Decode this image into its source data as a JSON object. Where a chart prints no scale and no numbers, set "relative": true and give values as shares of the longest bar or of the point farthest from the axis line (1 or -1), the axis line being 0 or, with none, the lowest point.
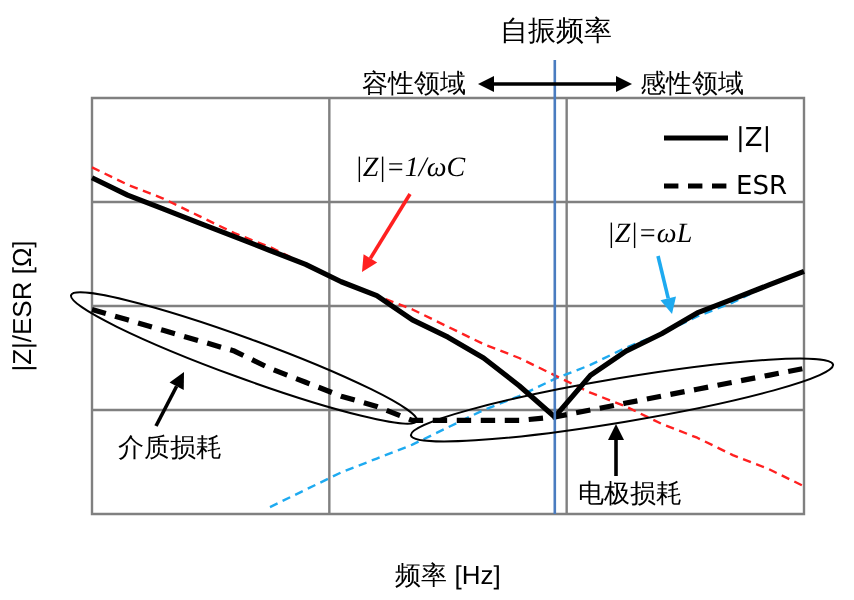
{
  "chart_data": {
    "type": "line",
    "relative": true,
    "xlabel": "频率 [Hz]",
    "ylabel": "|Z|/ESR [Ω]",
    "categories": [
      null,
      null,
      null,
      null,
      null,
      null,
      null,
      null,
      null,
      null,
      null,
      null,
      null,
      null,
      null,
      null,
      null,
      null,
      null,
      null,
      null
    ],
    "series": [
      {
        "name": "|Z|",
        "color": "#000000",
        "line_style": "solid",
        "values": [
          0.97,
          0.92,
          0.88,
          0.84,
          0.8,
          0.76,
          0.72,
          0.67,
          0.63,
          0.56,
          0.51,
          0.45,
          0.37,
          0.28,
          0.4,
          0.47,
          0.52,
          0.58,
          0.62,
          0.66,
          0.7
        ]
      },
      {
        "name": "ESR",
        "color": "#000000",
        "line_style": "dashed",
        "values": [
          0.59,
          0.56,
          0.53,
          0.5,
          0.47,
          0.42,
          0.38,
          0.34,
          0.31,
          0.27,
          0.27,
          0.27,
          0.27,
          0.28,
          0.3,
          0.32,
          0.34,
          0.36,
          0.38,
          0.4,
          0.42
        ]
      },
      {
        "color": "#ff2020",
        "line_style": "dashed",
        "values": [
          1,
          0.95,
          0.91,
          0.86,
          0.81,
          0.77,
          0.72,
          0.67,
          0.63,
          0.59,
          0.54,
          0.49,
          0.45,
          0.4,
          0.35,
          0.31,
          0.26,
          0.22,
          0.17,
          0.13,
          0.08
        ]
      },
      {
        "color": "#1eaaf0",
        "line_style": "dashed",
        "values": [
          null,
          null,
          null,
          null,
          null,
          0.02,
          0.07,
          0.12,
          0.16,
          0.2,
          0.25,
          0.3,
          0.34,
          0.39,
          0.43,
          0.48,
          0.52,
          0.57,
          0.61,
          0.66,
          0.7
        ]
      }
    ],
    "annotations": [
      "自振频率",
      "容性领域",
      "感性领域",
      "|Z|=1/ωC",
      "|Z|=ωL",
      "介质损耗",
      "电极损耗"
    ],
    "grid": true,
    "legend": "top right"
  }
}
